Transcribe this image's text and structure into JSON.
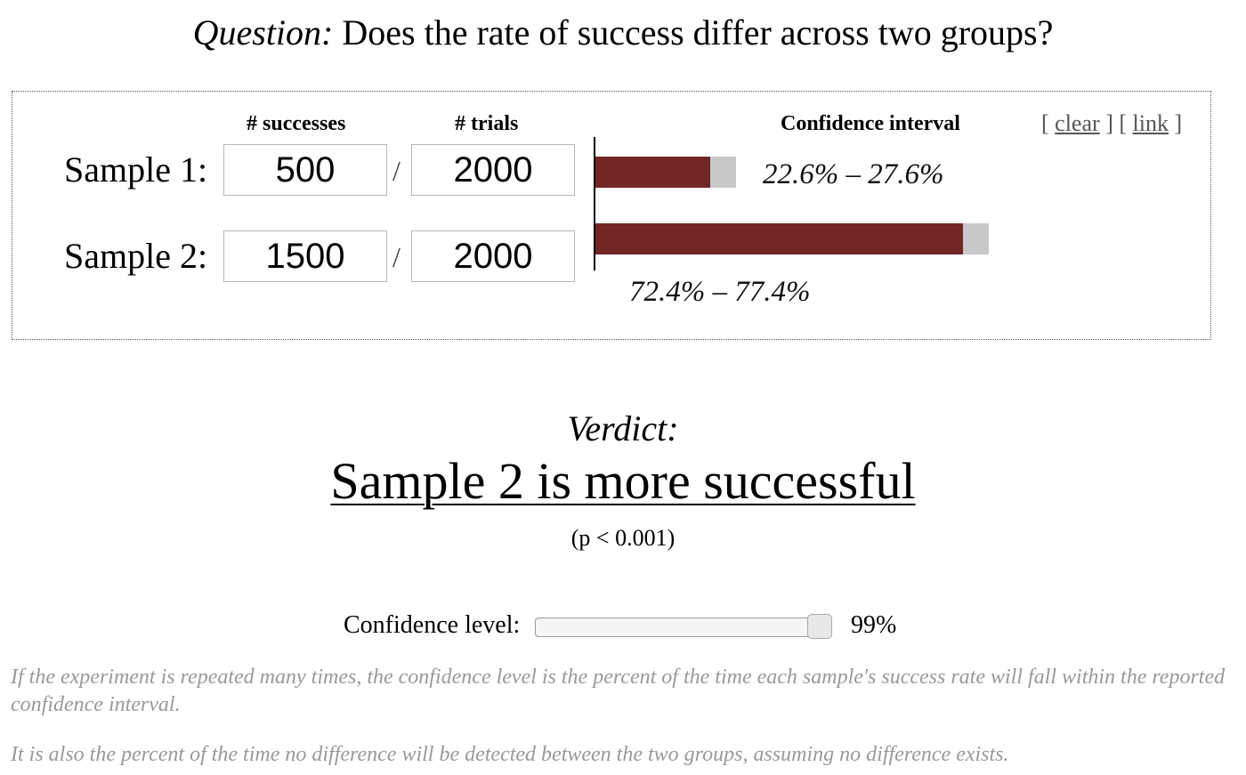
{
  "question": {
    "lead": "Question:",
    "text": "Does the rate of success differ across two groups?"
  },
  "table": {
    "successes_header": "# successes",
    "trials_header": "# trials",
    "ci_header": "Confidence interval",
    "links": {
      "clear": "clear",
      "link": "link"
    },
    "separator": "/",
    "samples": [
      {
        "label": "Sample 1:",
        "successes": "500",
        "trials": "2000",
        "ci_text": "22.6% – 27.6%",
        "rate_pct": 25.0,
        "ci_low_pct": 22.6,
        "ci_high_pct": 27.6
      },
      {
        "label": "Sample 2:",
        "successes": "1500",
        "trials": "2000",
        "ci_text": "72.4% – 77.4%",
        "rate_pct": 75.0,
        "ci_low_pct": 72.4,
        "ci_high_pct": 77.4
      }
    ]
  },
  "verdict": {
    "lead": "Verdict:",
    "result": "Sample 2 is more successful",
    "p_value": "(p < 0.001)"
  },
  "confidence": {
    "label": "Confidence level:",
    "value_text": "99%",
    "slider_fraction": 1.0
  },
  "notes": [
    "If the experiment is repeated many times, the confidence level is the percent of the time each sample's success rate will fall within the reported confidence interval.",
    "It is also the percent of the time no difference will be detected between the two groups, assuming no difference exists."
  ],
  "colors": {
    "bar": "#722727",
    "ci": "#c8c8c8",
    "note": "#999999"
  }
}
